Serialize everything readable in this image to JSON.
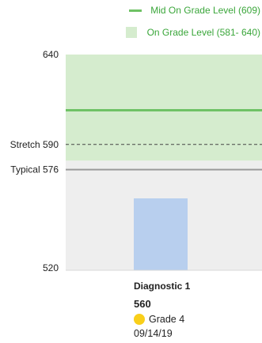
{
  "legend": {
    "mid_label": "Mid On Grade Level (609)",
    "range_label": "On Grade Level (581- 640)"
  },
  "colors": {
    "on_grade_band": "#d5ecce",
    "below_band": "#eeeeee",
    "mid_line": "#6fc265",
    "legend_text": "#3aa63a",
    "bar": "#b8cfee",
    "typical_line": "#9a9a9a",
    "stretch_line": "#444444",
    "grade_dot": "#f9cf1a"
  },
  "chart_data": {
    "type": "bar",
    "categories": [
      "Diagnostic 1"
    ],
    "values": [
      560
    ],
    "ylim": [
      520,
      640
    ],
    "yticks": [
      520,
      640
    ],
    "reference_lines": [
      {
        "label": "Mid On Grade Level (609)",
        "value": 609,
        "style": "solid"
      },
      {
        "label": "Stretch 590",
        "value": 590,
        "style": "dashed"
      },
      {
        "label": "Typical 576",
        "value": 576,
        "style": "solid"
      }
    ],
    "band": {
      "label": "On Grade Level (581- 640)",
      "from": 581,
      "to": 640
    },
    "bar_details": {
      "score": "560",
      "grade": "Grade 4",
      "date": "09/14/19"
    }
  }
}
